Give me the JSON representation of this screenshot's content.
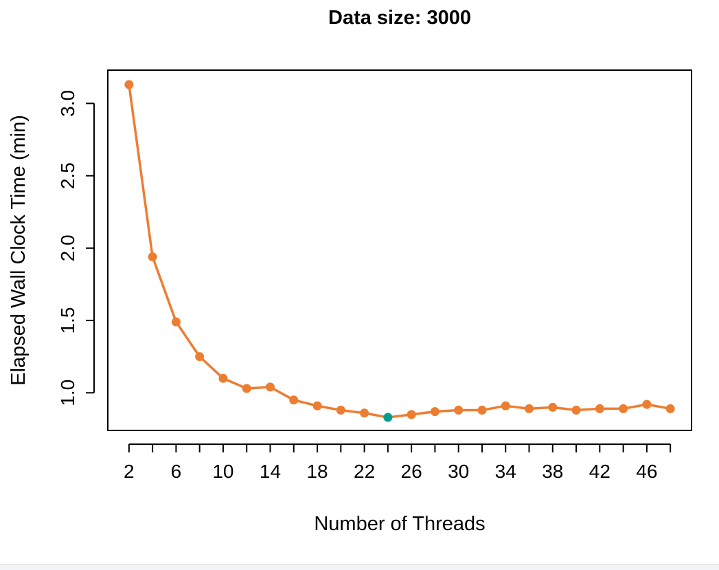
{
  "chart_data": {
    "type": "line",
    "title": "Data size: 3000",
    "xlabel": "Number of Threads",
    "ylabel": "Elapsed Wall Clock Time (min)",
    "x": [
      2,
      4,
      6,
      8,
      10,
      12,
      14,
      16,
      18,
      20,
      22,
      24,
      26,
      28,
      30,
      32,
      34,
      36,
      38,
      40,
      42,
      44,
      46,
      48
    ],
    "series": [
      {
        "name": "",
        "values": [
          3.13,
          1.94,
          1.49,
          1.25,
          1.1,
          1.03,
          1.04,
          0.95,
          0.91,
          0.88,
          0.86,
          0.83,
          0.85,
          0.87,
          0.88,
          0.88,
          0.91,
          0.89,
          0.9,
          0.88,
          0.89,
          0.89,
          0.92,
          0.89
        ],
        "color": "#ED7D31"
      }
    ],
    "highlight": {
      "x": 24,
      "y": 0.83,
      "color": "#009E8E"
    },
    "xlim": [
      0.2,
      49.8
    ],
    "ylim": [
      0.74,
      3.23
    ],
    "x_tick_labels": [
      "2",
      "6",
      "10",
      "14",
      "18",
      "22",
      "26",
      "30",
      "34",
      "38",
      "42",
      "46"
    ],
    "x_minor_ticks": [
      4,
      8,
      12,
      16,
      20,
      24,
      28,
      32,
      36,
      40,
      44,
      48
    ],
    "y_ticks": [
      1.0,
      1.5,
      2.0,
      2.5,
      3.0
    ],
    "y_tick_labels": [
      "1.0",
      "1.5",
      "2.0",
      "2.5",
      "3.0"
    ],
    "grid": false,
    "legend": "none"
  }
}
